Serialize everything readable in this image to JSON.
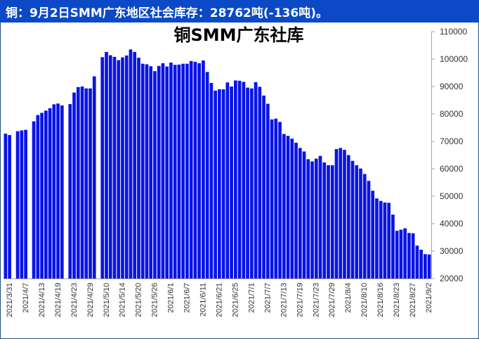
{
  "header": {
    "text": "铜：9月2日SMM广东地区社会库存：28762吨(-136吨)。"
  },
  "colors": {
    "header_bg": "#0b49c6",
    "bar": "#0a14e6",
    "axis": "#a6a6a6"
  },
  "chart_data": {
    "type": "bar",
    "title": "铜SMM广东社库",
    "xlabel": "",
    "ylabel": "",
    "ylim": [
      20000,
      110000
    ],
    "y_ticks": [
      20000,
      30000,
      40000,
      50000,
      60000,
      70000,
      80000,
      90000,
      100000,
      110000
    ],
    "y_axis_side": "right",
    "grid": false,
    "legend": "none",
    "x_tick_labels": [
      "2021/3/31",
      "2021/4/7",
      "2021/4/13",
      "2021/4/19",
      "2021/4/23",
      "2021/4/29",
      "2021/5/10",
      "2021/5/14",
      "2021/5/20",
      "2021/5/26",
      "2021/6/1",
      "2021/6/7",
      "2021/6/11",
      "2021/6/21",
      "2021/6/25",
      "2021/7/1",
      "2021/7/7",
      "2021/7/13",
      "2021/7/19",
      "2021/7/23",
      "2021/7/29",
      "2021/8/4",
      "2021/8/10",
      "2021/8/16",
      "2021/8/23",
      "2021/8/27",
      "2021/9/2"
    ],
    "values": [
      72800,
      72300,
      null,
      73700,
      74000,
      74200,
      null,
      77300,
      79600,
      80400,
      81200,
      82100,
      83500,
      83800,
      83100,
      null,
      83600,
      87800,
      89800,
      90000,
      89300,
      89300,
      93700,
      null,
      100700,
      102600,
      101400,
      100800,
      99600,
      100600,
      101300,
      103500,
      102600,
      100500,
      98300,
      98100,
      97400,
      95600,
      97500,
      98500,
      97300,
      98700,
      97900,
      98000,
      98300,
      98300,
      99300,
      99000,
      98500,
      99500,
      95300,
      91300,
      88500,
      89000,
      89000,
      91500,
      90000,
      92200,
      92100,
      91700,
      89600,
      89300,
      91600,
      89900,
      86700,
      83700,
      78000,
      78300,
      77100,
      72700,
      72000,
      71000,
      69500,
      67600,
      66300,
      63500,
      62700,
      63700,
      64700,
      62300,
      61300,
      61300,
      67200,
      67600,
      66900,
      65000,
      62900,
      61300,
      60100,
      58100,
      55600,
      52000,
      49200,
      48300,
      47700,
      47600,
      43300,
      37400,
      37800,
      38300,
      36600,
      36500,
      32000,
      30500,
      28900,
      28762
    ]
  }
}
